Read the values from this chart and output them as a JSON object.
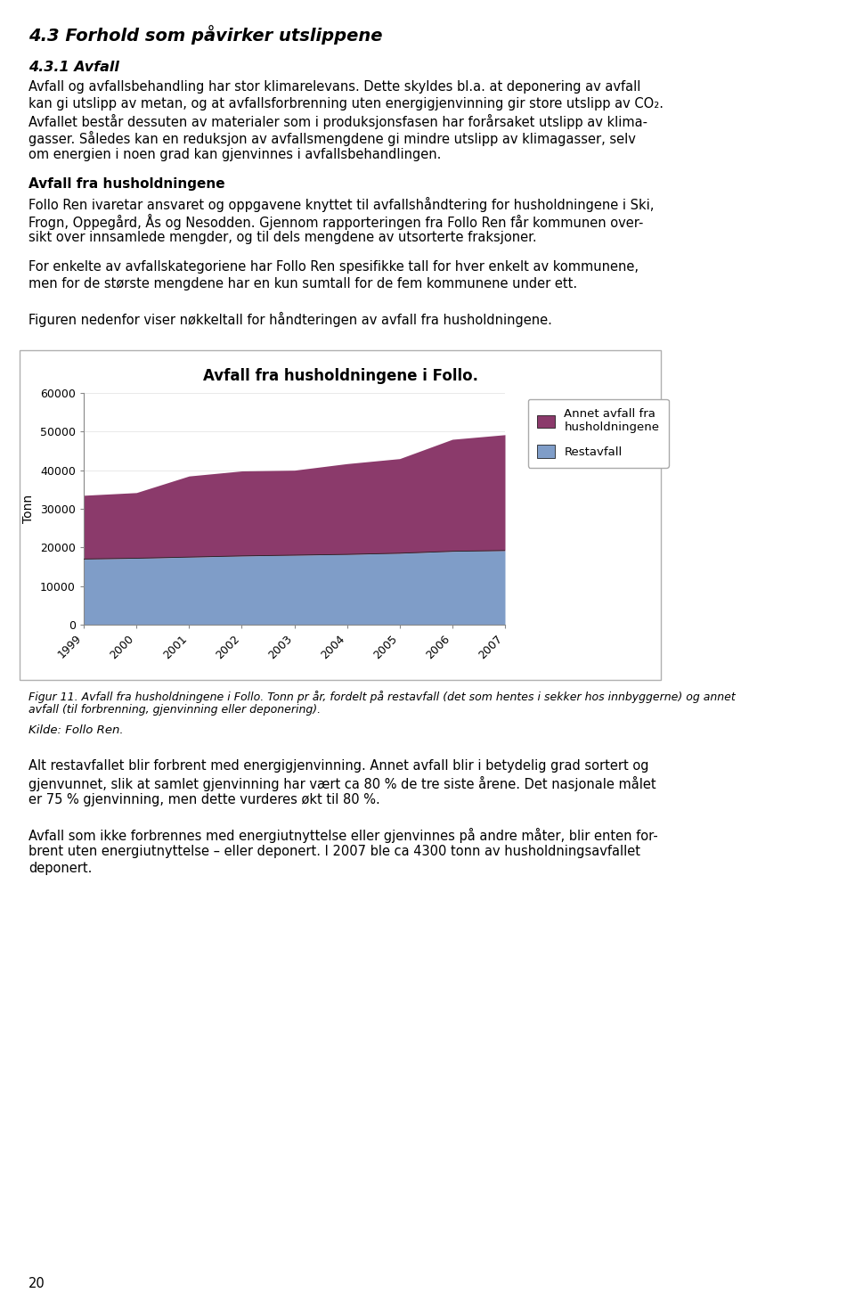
{
  "title": "Avfall fra husholdningene i Follo.",
  "years": [
    1999,
    2000,
    2001,
    2002,
    2003,
    2004,
    2005,
    2006,
    2007
  ],
  "restavfall": [
    17000,
    17200,
    17500,
    17800,
    18000,
    18200,
    18500,
    19000,
    19200
  ],
  "annet_avfall": [
    16500,
    17000,
    21000,
    22000,
    22000,
    23500,
    24500,
    29000,
    30000
  ],
  "restavfall_color": "#7f9dc8",
  "annet_avfall_color": "#8b3a6b",
  "ylabel": "Tonn",
  "ylim": [
    0,
    60000
  ],
  "yticks": [
    0,
    10000,
    20000,
    30000,
    40000,
    50000,
    60000
  ],
  "legend_label_annet": "Annet avfall fra\nhusholdningene",
  "legend_label_rest": "Restavfall",
  "bg_color": "#ffffff",
  "heading1": "4.3 Forhold som påvirker utslippene",
  "heading2": "4.3.1 Avfall",
  "heading3": "Avfall fra husholdningene",
  "para1_lines": [
    "Avfall og avfallsbehandling har stor klimarelevans. Dette skyldes bl.a. at deponering av avfall",
    "kan gi utslipp av metan, og at avfallsforbrenning uten energigjenvinning gir store utslipp av CO₂.",
    "Avfallet består dessuten av materialer som i produksjonsfasen har forårsaket utslipp av klima-",
    "gasser. Således kan en reduksjon av avfallsmengdene gi mindre utslipp av klimagasser, selv",
    "om energien i noen grad kan gjenvinnes i avfallsbehandlingen."
  ],
  "para2_lines": [
    "Follo Ren ivaretar ansvaret og oppgavene knyttet til avfallshåndtering for husholdningene i Ski,",
    "Frogn, Oppegård, Ås og Nesodden. Gjennom rapporteringen fra Follo Ren får kommunen over-",
    "sikt over innsamlede mengder, og til dels mengdene av utsorterte fraksjoner."
  ],
  "para3_lines": [
    "For enkelte av avfallskategoriene har Follo Ren spesifikke tall for hver enkelt av kommunene,",
    "men for de største mengdene har en kun sumtall for de fem kommunene under ett."
  ],
  "para4": "Figuren nedenfor viser nøkkeltall for håndteringen av avfall fra husholdningene.",
  "fig_caption_lines": [
    "Figur 11. Avfall fra husholdningene i Follo. Tonn pr år, fordelt på restavfall (det som hentes i sekker hos innbyggerne) og annet",
    "avfall (til forbrenning, gjenvinning eller deponering)."
  ],
  "source": "Kilde: Follo Ren.",
  "para5_lines": [
    "Alt restavfallet blir forbrent med energigjenvinning. Annet avfall blir i betydelig grad sortert og",
    "gjenvunnet, slik at samlet gjenvinning har vært ca 80 % de tre siste årene. Det nasjonale målet",
    "er 75 % gjenvinning, men dette vurderes økt til 80 %."
  ],
  "para6_lines": [
    "Avfall som ikke forbrennes med energiutnyttelse eller gjenvinnes på andre måter, blir enten for-",
    "brent uten energiutnyttelse – eller deponert. I 2007 ble ca 4300 tonn av husholdningsavfallet",
    "deponert."
  ],
  "page_num": "20"
}
